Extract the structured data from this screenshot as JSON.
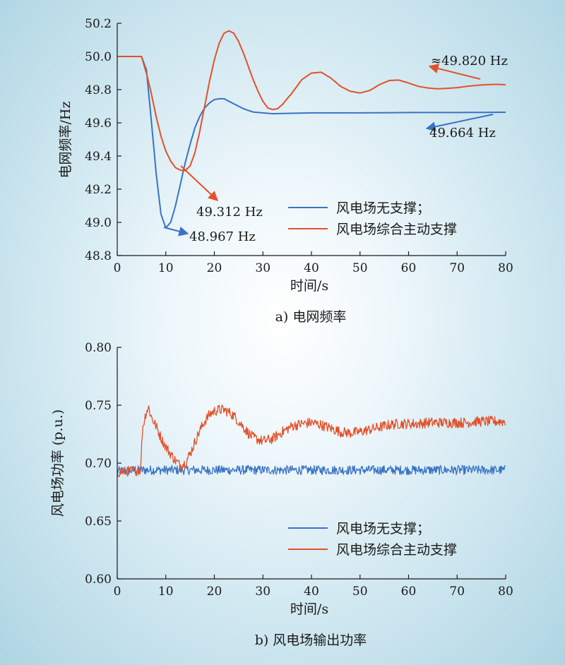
{
  "colors": {
    "blue": "#3a73c4",
    "orange": "#e2512a",
    "axis": "#1a1a1a"
  },
  "chart_data": [
    {
      "type": "line",
      "caption": "a) 电网频率",
      "xlabel": "时间/s",
      "ylabel": "电网频率/Hz",
      "xlim": [
        0,
        80
      ],
      "ylim": [
        48.8,
        50.2
      ],
      "xticks": [
        "0",
        "10",
        "20",
        "30",
        "40",
        "50",
        "60",
        "70",
        "80"
      ],
      "yticks": [
        "48.8",
        "49.0",
        "49.2",
        "49.4",
        "49.6",
        "49.8",
        "50.0",
        "50.2"
      ],
      "legend_position": "bottom-right",
      "series": [
        {
          "name": "风电场无支撑；",
          "color": "#3a73c4",
          "x": [
            0,
            5,
            6,
            7,
            8,
            9,
            10,
            11,
            12,
            13,
            14,
            15,
            16,
            17,
            18,
            19,
            20,
            21,
            22,
            23,
            24,
            25,
            26,
            27,
            28,
            30,
            32,
            35,
            40,
            50,
            60,
            70,
            80
          ],
          "y": [
            50.0,
            50.0,
            49.92,
            49.62,
            49.3,
            49.05,
            48.967,
            49.0,
            49.1,
            49.23,
            49.36,
            49.47,
            49.57,
            49.64,
            49.69,
            49.72,
            49.74,
            49.745,
            49.745,
            49.73,
            49.715,
            49.7,
            49.685,
            49.675,
            49.665,
            49.66,
            49.655,
            49.657,
            49.66,
            49.66,
            49.662,
            49.662,
            49.664
          ]
        },
        {
          "name": "风电场综合主动支撑",
          "color": "#e2512a",
          "x": [
            0,
            5,
            6,
            7,
            8,
            9,
            10,
            11,
            12,
            13,
            14,
            15,
            16,
            17,
            18,
            19,
            20,
            21,
            22,
            23,
            24,
            25,
            26,
            27,
            28,
            29,
            30,
            31,
            32,
            33,
            34,
            36,
            38,
            40,
            42,
            44,
            46,
            48,
            50,
            52,
            54,
            56,
            58,
            60,
            62,
            64,
            66,
            68,
            70,
            72,
            74,
            76,
            78,
            80
          ],
          "y": [
            50.0,
            50.0,
            49.9,
            49.78,
            49.64,
            49.52,
            49.43,
            49.37,
            49.33,
            49.315,
            49.312,
            49.34,
            49.42,
            49.55,
            49.7,
            49.85,
            49.98,
            50.08,
            50.14,
            50.155,
            50.14,
            50.09,
            50.02,
            49.94,
            49.86,
            49.79,
            49.73,
            49.69,
            49.68,
            49.685,
            49.71,
            49.78,
            49.86,
            49.9,
            49.905,
            49.87,
            49.82,
            49.79,
            49.78,
            49.795,
            49.83,
            49.855,
            49.858,
            49.84,
            49.82,
            49.81,
            49.805,
            49.808,
            49.812,
            49.82,
            49.826,
            49.83,
            49.832,
            49.83
          ]
        }
      ],
      "annotations": [
        {
          "text": "≈49.820 Hz",
          "x": 75,
          "y": 49.83,
          "color": "#e2512a"
        },
        {
          "text": "49.664 Hz",
          "x": 74,
          "y": 49.66,
          "color": "#3a73c4"
        },
        {
          "text": "49.312 Hz",
          "x": 13.5,
          "y": 49.31,
          "color": "#e2512a"
        },
        {
          "text": "48.967 Hz",
          "x": 10,
          "y": 48.967,
          "color": "#3a73c4"
        }
      ]
    },
    {
      "type": "line",
      "caption": "b) 风电场输出功率",
      "xlabel": "时间/s",
      "ylabel": "风电场功率 (p.u.)",
      "xlim": [
        0,
        80
      ],
      "ylim": [
        0.6,
        0.8
      ],
      "xticks": [
        "0",
        "10",
        "20",
        "30",
        "40",
        "50",
        "60",
        "70",
        "80"
      ],
      "yticks": [
        "0.60",
        "0.65",
        "0.70",
        "0.75",
        "0.80"
      ],
      "legend_position": "bottom-right",
      "series": [
        {
          "name": "风电场无支撑；",
          "color": "#3a73c4",
          "x": [
            0,
            5,
            10,
            20,
            30,
            40,
            50,
            60,
            70,
            80
          ],
          "y": [
            0.693,
            0.694,
            0.694,
            0.694,
            0.694,
            0.694,
            0.694,
            0.694,
            0.694,
            0.694
          ],
          "noise": 0.004
        },
        {
          "name": "风电场综合主动支撑",
          "color": "#e2512a",
          "x": [
            0,
            4.8,
            5.2,
            6,
            6.5,
            7,
            8,
            9,
            10,
            11,
            12,
            13,
            14,
            15,
            16,
            17,
            18,
            19,
            20,
            21,
            22,
            23,
            24,
            25,
            26,
            27,
            28,
            30,
            32,
            34,
            36,
            38,
            40,
            42,
            44,
            46,
            48,
            50,
            52,
            54,
            56,
            58,
            60,
            62,
            64,
            66,
            68,
            70,
            72,
            74,
            76,
            78,
            80
          ],
          "y": [
            0.692,
            0.694,
            0.73,
            0.745,
            0.748,
            0.74,
            0.732,
            0.722,
            0.714,
            0.708,
            0.702,
            0.698,
            0.7,
            0.708,
            0.718,
            0.728,
            0.736,
            0.742,
            0.745,
            0.746,
            0.746,
            0.744,
            0.741,
            0.736,
            0.731,
            0.726,
            0.722,
            0.719,
            0.721,
            0.727,
            0.732,
            0.734,
            0.735,
            0.733,
            0.73,
            0.727,
            0.726,
            0.727,
            0.729,
            0.731,
            0.733,
            0.734,
            0.734,
            0.734,
            0.735,
            0.735,
            0.735,
            0.735,
            0.735,
            0.736,
            0.736,
            0.736,
            0.736
          ],
          "noise": 0.0045
        }
      ]
    }
  ]
}
